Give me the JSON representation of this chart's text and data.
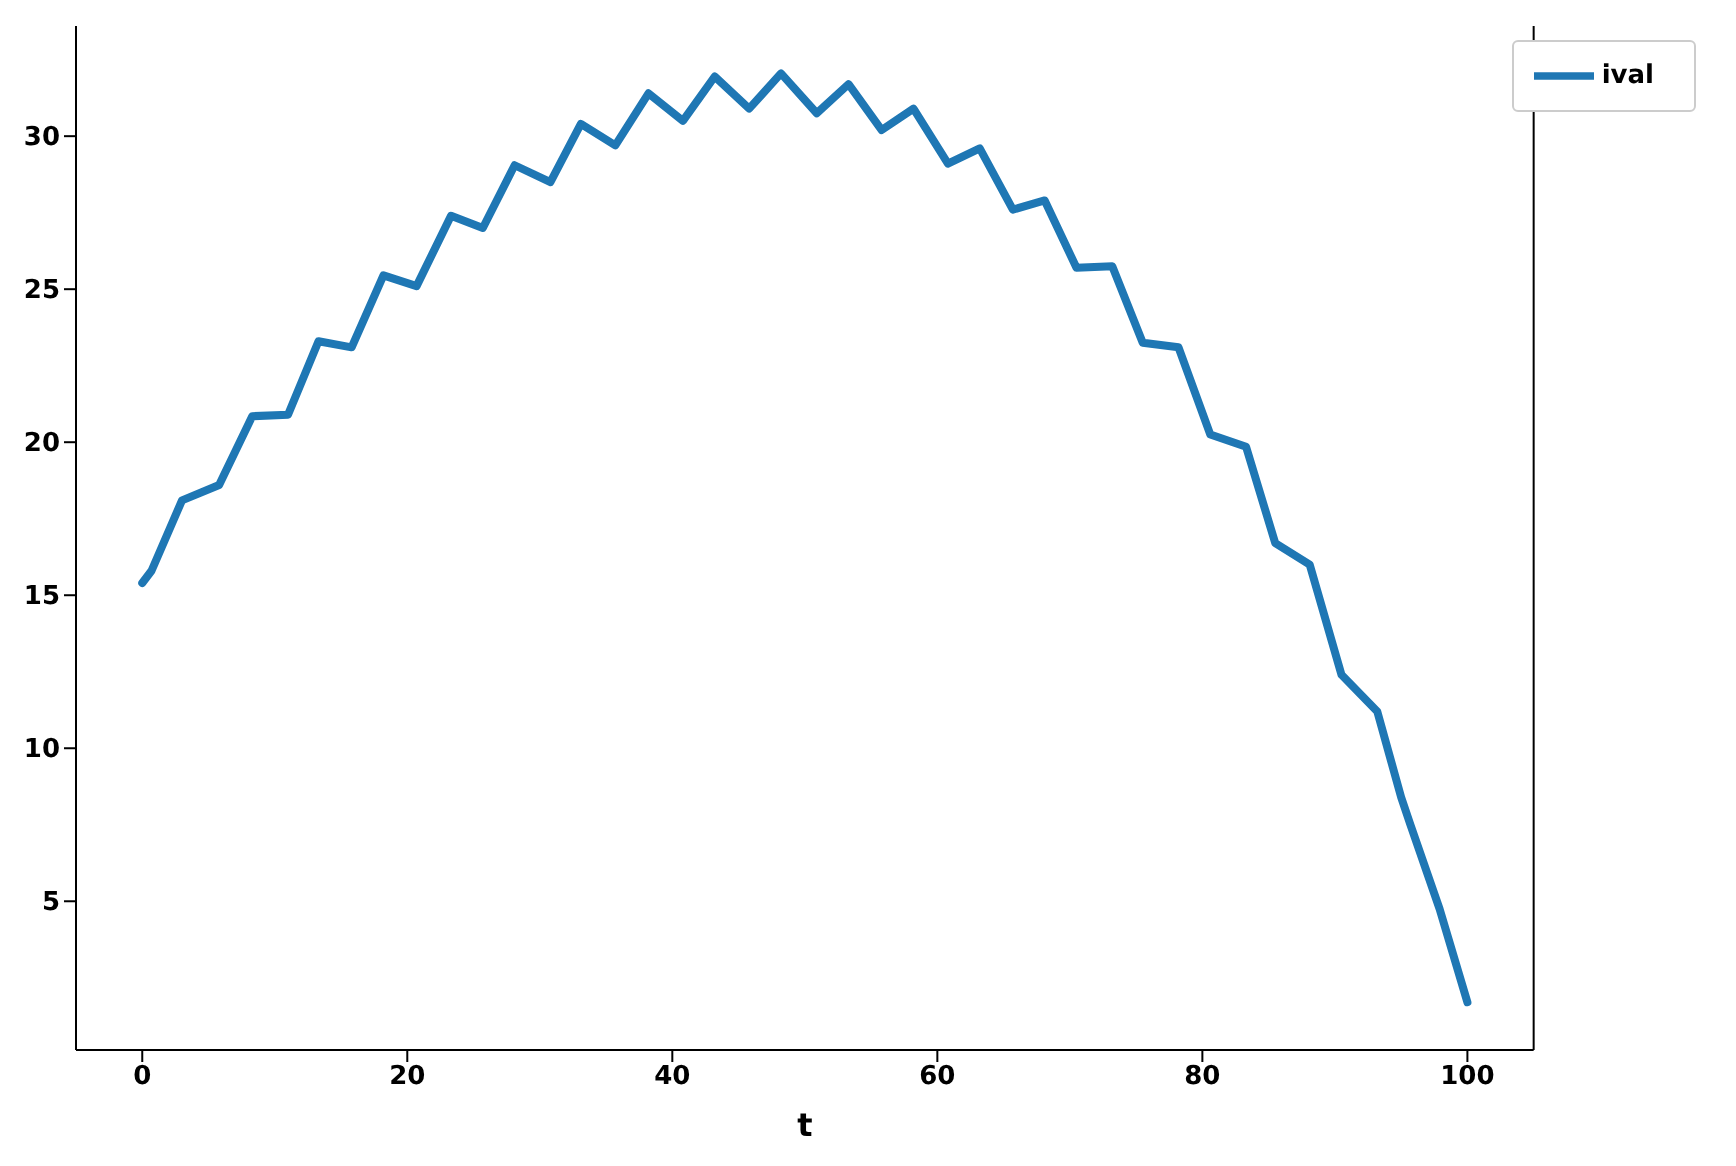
{
  "chart_data": {
    "type": "line",
    "xlabel": "t",
    "xlim": [
      -5,
      105
    ],
    "xticks": [
      0,
      20,
      40,
      60,
      80,
      100
    ],
    "ylim": [
      0.14,
      33.6
    ],
    "yticks": [
      5,
      10,
      15,
      20,
      25,
      30
    ],
    "grid": false,
    "legend": "top right",
    "marker": "none",
    "line_style": "solid",
    "series": [
      {
        "name": "ival",
        "color": "#1f77b4",
        "x": [
          0,
          0.7,
          3,
          5.8,
          8.3,
          11,
          13.3,
          15.8,
          18.2,
          20.7,
          23.3,
          25.7,
          28.1,
          30.8,
          33.1,
          35.7,
          38.2,
          40.8,
          43.2,
          45.8,
          48.2,
          50.9,
          53.3,
          55.8,
          58.2,
          60.8,
          63.2,
          65.7,
          68.1,
          70.5,
          73.2,
          75.5,
          78.2,
          80.6,
          83.3,
          85.5,
          88.1,
          90.5,
          93.2,
          95,
          95.7,
          97.9,
          100
        ],
        "values": [
          15.4,
          15.8,
          18.1,
          18.6,
          20.85,
          20.9,
          23.3,
          23.1,
          25.45,
          25.1,
          27.4,
          27.0,
          29.05,
          28.5,
          30.4,
          29.7,
          31.4,
          30.5,
          31.95,
          30.9,
          32.05,
          30.75,
          31.7,
          30.2,
          30.9,
          29.1,
          29.6,
          27.6,
          27.9,
          25.7,
          25.75,
          23.25,
          23.1,
          20.25,
          19.85,
          16.7,
          16.0,
          12.4,
          11.2,
          8.4,
          7.5,
          4.75,
          1.7
        ]
      }
    ]
  }
}
